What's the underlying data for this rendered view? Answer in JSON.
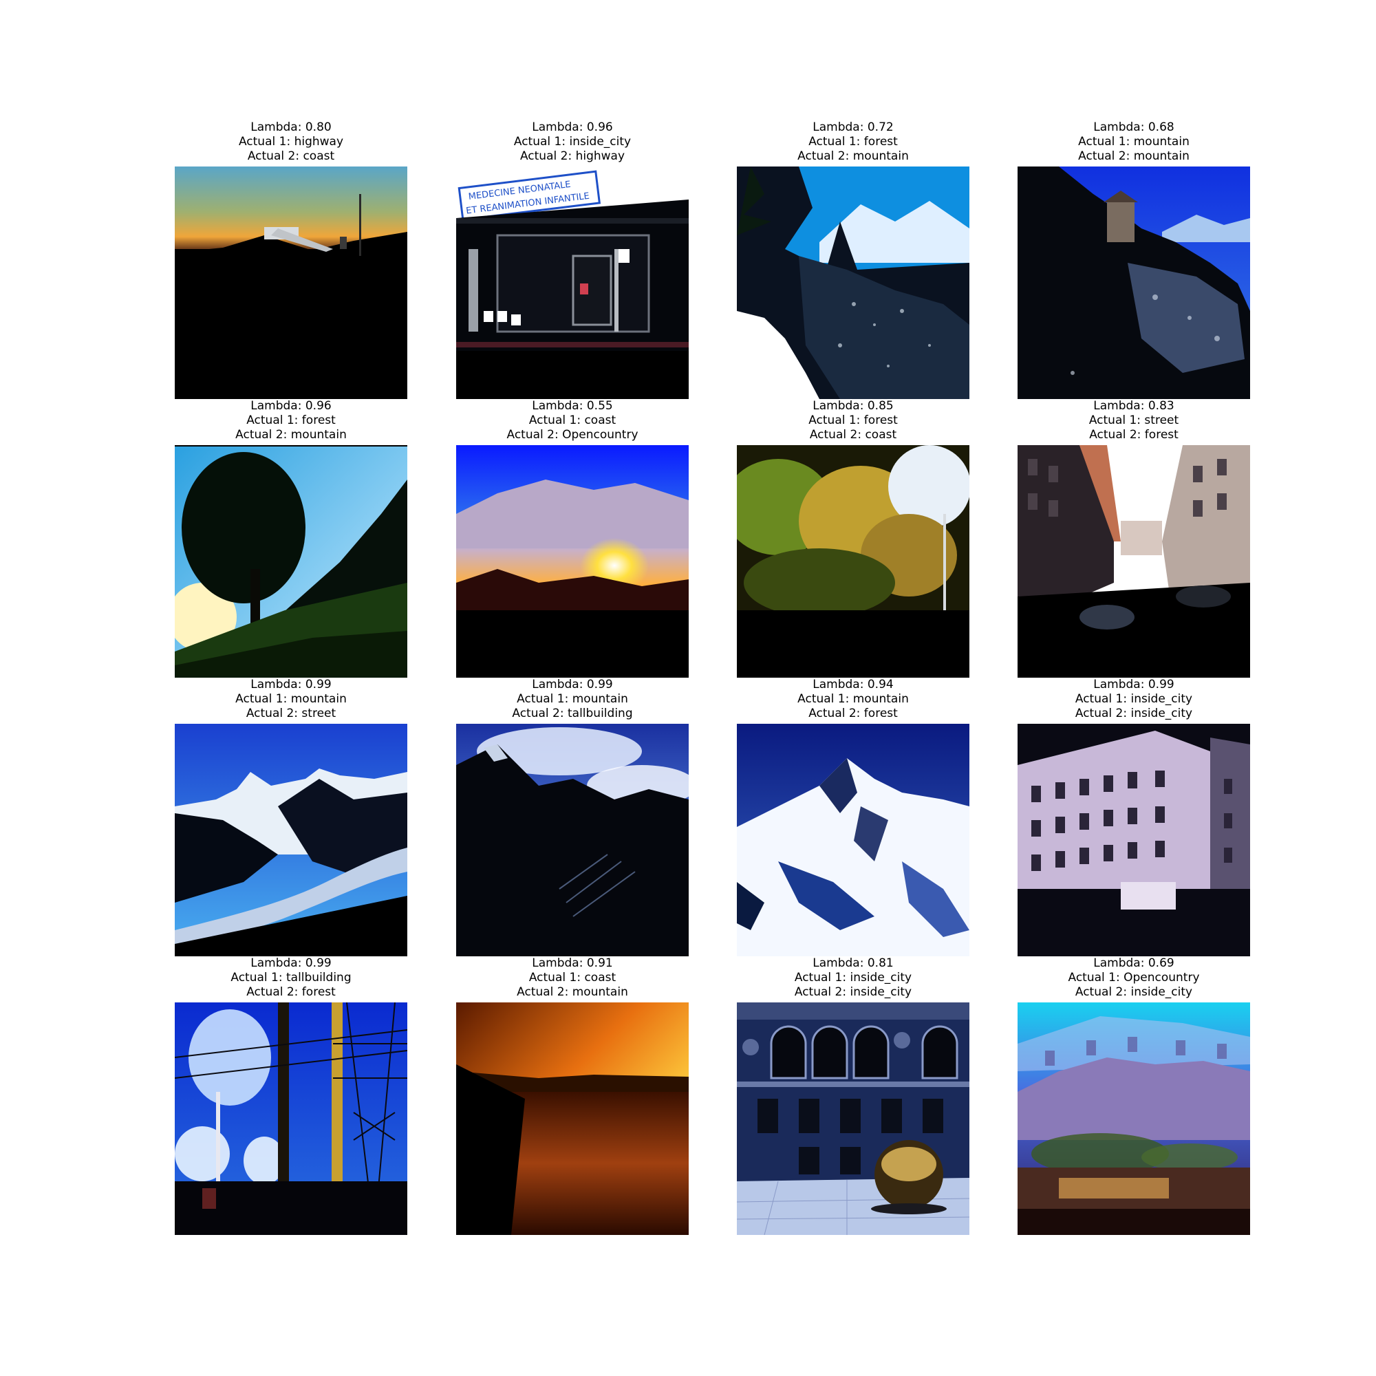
{
  "panels": [
    {
      "lambda": "Lambda: 0.80",
      "actual1": "Actual 1: highway",
      "actual2": "Actual 2: coast"
    },
    {
      "lambda": "Lambda: 0.96",
      "actual1": "Actual 1: inside_city",
      "actual2": "Actual 2: highway",
      "sign_line1": "MEDECINE  NEONATALE",
      "sign_line2": "ET REANIMATION  INFANTILE"
    },
    {
      "lambda": "Lambda: 0.72",
      "actual1": "Actual 1: forest",
      "actual2": "Actual 2: mountain"
    },
    {
      "lambda": "Lambda: 0.68",
      "actual1": "Actual 1: mountain",
      "actual2": "Actual 2: mountain"
    },
    {
      "lambda": "Lambda: 0.96",
      "actual1": "Actual 1: forest",
      "actual2": "Actual 2: mountain"
    },
    {
      "lambda": "Lambda: 0.55",
      "actual1": "Actual 1: coast",
      "actual2": "Actual 2: Opencountry"
    },
    {
      "lambda": "Lambda: 0.85",
      "actual1": "Actual 1: forest",
      "actual2": "Actual 2: coast"
    },
    {
      "lambda": "Lambda: 0.83",
      "actual1": "Actual 1: street",
      "actual2": "Actual 2: forest"
    },
    {
      "lambda": "Lambda: 0.99",
      "actual1": "Actual 1: mountain",
      "actual2": "Actual 2: street"
    },
    {
      "lambda": "Lambda: 0.99",
      "actual1": "Actual 1: mountain",
      "actual2": "Actual 2: tallbuilding"
    },
    {
      "lambda": "Lambda: 0.94",
      "actual1": "Actual 1: mountain",
      "actual2": "Actual 2: forest"
    },
    {
      "lambda": "Lambda: 0.99",
      "actual1": "Actual 1: inside_city",
      "actual2": "Actual 2: inside_city"
    },
    {
      "lambda": "Lambda: 0.99",
      "actual1": "Actual 1: tallbuilding",
      "actual2": "Actual 2: forest"
    },
    {
      "lambda": "Lambda: 0.91",
      "actual1": "Actual 1: coast",
      "actual2": "Actual 2: mountain"
    },
    {
      "lambda": "Lambda: 0.81",
      "actual1": "Actual 1: inside_city",
      "actual2": "Actual 2: inside_city"
    },
    {
      "lambda": "Lambda: 0.69",
      "actual1": "Actual 1: Opencountry",
      "actual2": "Actual 2: inside_city"
    }
  ]
}
